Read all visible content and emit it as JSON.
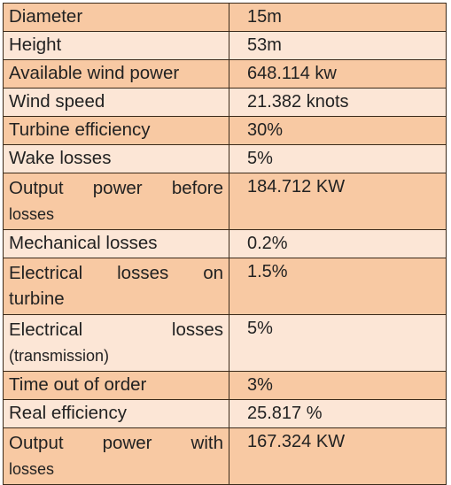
{
  "rows": [
    {
      "label": "Diameter",
      "value": "15m"
    },
    {
      "label": "Height",
      "value": "53m"
    },
    {
      "label": "Available wind power",
      "value": "648.114 kw"
    },
    {
      "label": "Wind speed",
      "value": "21.382 knots"
    },
    {
      "label": "Turbine efficiency",
      "value": "30%"
    },
    {
      "label": "Wake losses",
      "value": "5%"
    },
    {
      "label_line1": "Output power before",
      "label_line2": "losses",
      "value": "184.712 KW"
    },
    {
      "label": "Mechanical losses",
      "value": "0.2%"
    },
    {
      "label_line1": "Electrical losses on",
      "label_line2": "turbine",
      "value": "1.5%"
    },
    {
      "label_line1": "Electrical losses",
      "label_line2": "(transmission)",
      "value": "5%"
    },
    {
      "label": "Time out of order",
      "value": "3%"
    },
    {
      "label": "Real efficiency",
      "value": "25.817 %"
    },
    {
      "label_line1": "Output power with",
      "label_line2": "losses",
      "value": "167.324 KW"
    }
  ],
  "colors": {
    "row_dark": "#f8c9a3",
    "row_light": "#fce6d6",
    "border": "#3a2a1a"
  }
}
